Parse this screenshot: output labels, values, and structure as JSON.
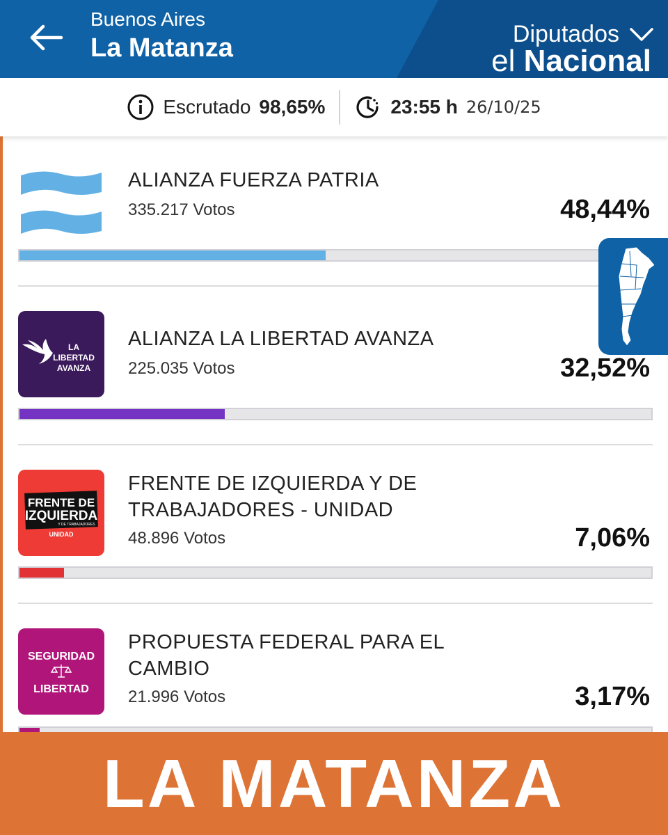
{
  "header": {
    "province": "Buenos Aires",
    "city": "La Matanza",
    "category": "Diputados",
    "logo_el": "el",
    "logo_nacional": "Nacional",
    "back_icon": "arrow-left-icon",
    "dropdown_icon": "chevron-down-icon"
  },
  "status": {
    "scrutiny_label": "Escrutado",
    "scrutiny_value": "98,65%",
    "time_value": "23:55 h",
    "date_value": "26/10/25"
  },
  "results": [
    {
      "name": "ALIANZA FUERZA PATRIA",
      "votes": "335.217 Votos",
      "percent": "48,44%",
      "share": 0.4844,
      "color": "#63b1e4"
    },
    {
      "name": "ALIANZA LA LIBERTAD AVANZA",
      "votes": "225.035 Votos",
      "percent": "32,52%",
      "share": 0.3252,
      "color": "#7433c2"
    },
    {
      "name": "FRENTE DE IZQUIERDA Y DE TRABAJADORES - UNIDAD",
      "votes": "48.896 Votos",
      "percent": "7,06%",
      "share": 0.0706,
      "color": "#e33236"
    },
    {
      "name": "PROPUESTA FEDERAL PARA EL CAMBIO",
      "votes": "21.996 Votos",
      "percent": "3,17%",
      "share": 0.0317,
      "color": "#b0167a"
    }
  ],
  "logos": {
    "lla_line1": "LA",
    "lla_line2": "LIBERTAD",
    "lla_line3": "AVANZA",
    "fit_line1": "FRENTE DE",
    "fit_line2": "IZQUIERDA",
    "fit_line3": "Y DE TRABAJADORES",
    "fit_line4": "UNIDAD",
    "pfc_line1": "SEGURIDAD",
    "pfc_line2": "LIBERTAD"
  },
  "banner": {
    "text": "LA MATANZA"
  },
  "colors": {
    "header": "#0f62a6",
    "header_dark": "#0c4f8c",
    "banner": "#dd7334"
  }
}
